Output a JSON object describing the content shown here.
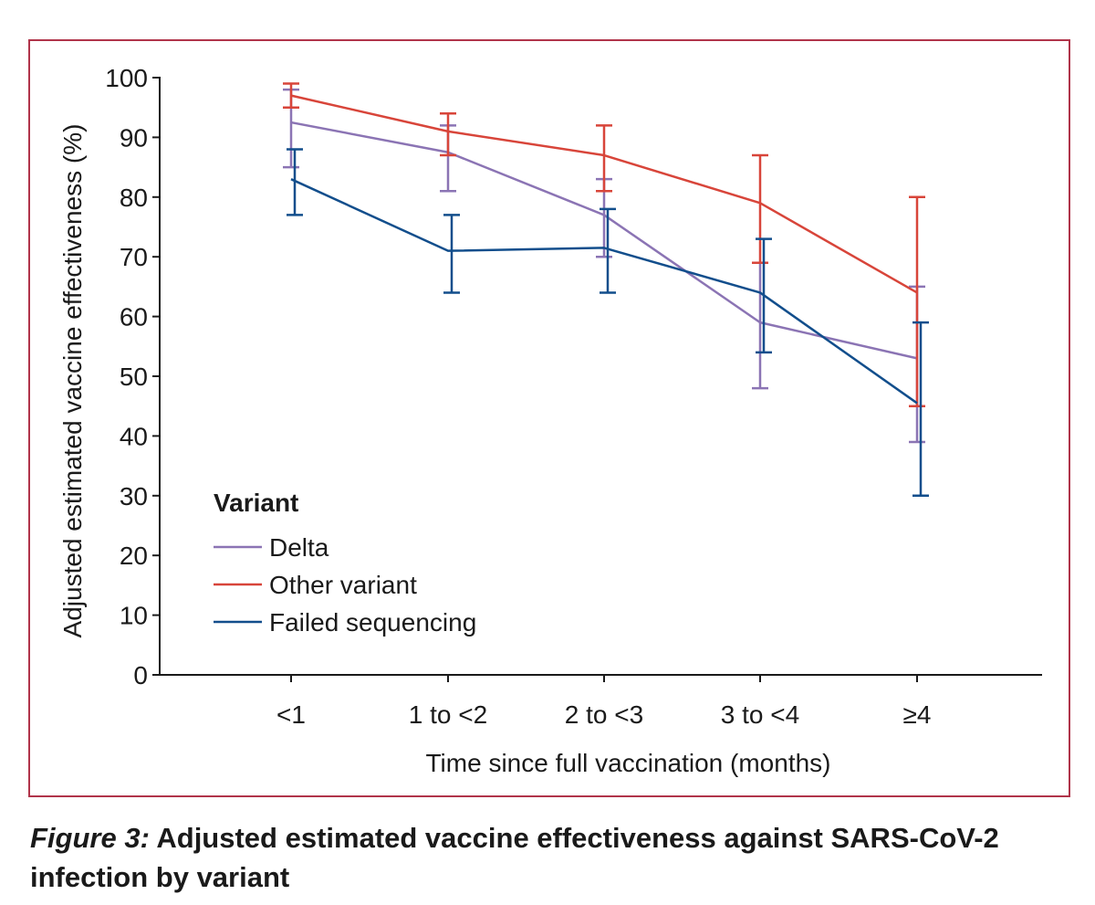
{
  "caption": {
    "figure_label": "Figure 3:",
    "text": " Adjusted estimated vaccine effectiveness against SARS-CoV-2 infection by variant"
  },
  "colors": {
    "frame": "#b0344a",
    "Delta": "#8b74b4",
    "Other variant": "#d8453a",
    "Failed sequencing": "#124e8c"
  },
  "chart_data": {
    "type": "line",
    "xlabel": "Time since full vaccination (months)",
    "ylabel": "Adjusted estimated vaccine effectiveness (%)",
    "categories": [
      "<1",
      "1 to <2",
      "2 to <3",
      "3 to <4",
      "≥4"
    ],
    "ylim": [
      0,
      100
    ],
    "yticks": [
      0,
      10,
      20,
      30,
      40,
      50,
      60,
      70,
      80,
      90,
      100
    ],
    "grid": false,
    "error_bars": true,
    "legend": {
      "title": "Variant",
      "placement": "bottom-left"
    },
    "series": [
      {
        "name": "Delta",
        "color": "#8b74b4",
        "values": [
          92.5,
          87.5,
          77.0,
          59.0,
          53.0
        ],
        "lower": [
          85.0,
          81.0,
          70.0,
          48.0,
          39.0
        ],
        "upper": [
          98.0,
          92.0,
          83.0,
          69.0,
          65.0
        ]
      },
      {
        "name": "Other variant",
        "color": "#d8453a",
        "values": [
          97.0,
          91.0,
          87.0,
          79.0,
          64.0
        ],
        "lower": [
          95.0,
          87.0,
          81.0,
          69.0,
          45.0
        ],
        "upper": [
          99.0,
          94.0,
          92.0,
          87.0,
          80.0
        ]
      },
      {
        "name": "Failed sequencing",
        "color": "#124e8c",
        "values": [
          83.0,
          71.0,
          71.5,
          64.0,
          45.5
        ],
        "lower": [
          77.0,
          64.0,
          64.0,
          54.0,
          30.0
        ],
        "upper": [
          88.0,
          77.0,
          78.0,
          73.0,
          59.0
        ]
      }
    ]
  }
}
